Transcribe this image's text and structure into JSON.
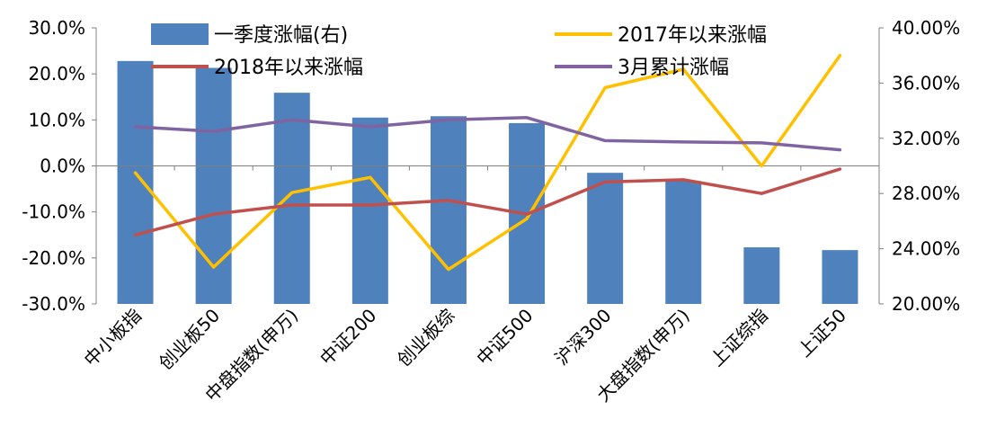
{
  "chart_data": {
    "type": "bar",
    "categories": [
      "中小板指",
      "创业板50",
      "中盘指数(申万)",
      "中证200",
      "创业板综",
      "中证500",
      "沪深300",
      "大盘指数(申万)",
      "上证综指",
      "上证50"
    ],
    "series": [
      {
        "name": "一季度涨幅(右)",
        "type": "bar",
        "axis": "right",
        "color": "#4F81BD",
        "values": [
          37.6,
          37.1,
          35.3,
          33.5,
          33.6,
          33.1,
          29.5,
          28.9,
          24.1,
          23.9
        ]
      },
      {
        "name": "2017年以来涨幅",
        "type": "line",
        "axis": "left",
        "color": "#FFC000",
        "values": [
          -1.5,
          -22.0,
          -5.8,
          -2.5,
          -22.5,
          -11.5,
          17.0,
          21.0,
          0.0,
          24.0
        ]
      },
      {
        "name": "2018年以来涨幅",
        "type": "line",
        "axis": "left",
        "color": "#C0504D",
        "values": [
          -15.0,
          -10.5,
          -8.5,
          -8.5,
          -7.5,
          -10.5,
          -3.5,
          -3.0,
          -6.0,
          -0.7
        ]
      },
      {
        "name": "3月累计涨幅",
        "type": "line",
        "axis": "left",
        "color": "#8064A2",
        "values": [
          8.5,
          7.5,
          10.0,
          8.5,
          10.0,
          10.5,
          5.5,
          5.2,
          5.0,
          3.5
        ]
      }
    ],
    "left_axis": {
      "min": -30,
      "max": 30,
      "step": 10,
      "ticks": [
        "30.0%",
        "20.0%",
        "10.0%",
        "0.0%",
        "-10.0%",
        "-20.0%",
        "-30.0%"
      ]
    },
    "right_axis": {
      "min": 20,
      "max": 40,
      "step": 4,
      "ticks": [
        "40.00%",
        "36.00%",
        "32.00%",
        "28.00%",
        "24.00%",
        "20.00%"
      ]
    },
    "legend_placement": "top",
    "grid": false
  }
}
